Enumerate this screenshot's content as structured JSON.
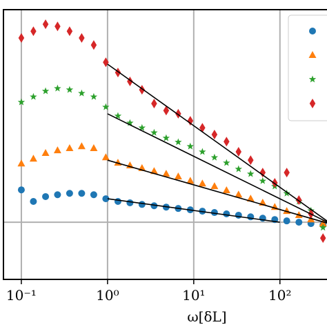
{
  "chart_data": {
    "type": "scatter",
    "x_label": "ω[δL]",
    "xscale": "log",
    "xlim": [
      0.062,
      400
    ],
    "xticks": [
      {
        "value": 0.1,
        "label": "10⁻¹"
      },
      {
        "value": 1,
        "label": "10⁰"
      },
      {
        "value": 10,
        "label": "10¹"
      },
      {
        "value": 100,
        "label": "10²"
      }
    ],
    "ylim": [
      -2.12,
      7.88
    ],
    "yticks": [
      0
    ],
    "grid": true,
    "legend": "upper right",
    "x": [
      0.1,
      0.138,
      0.191,
      0.263,
      0.363,
      0.501,
      0.692,
      0.955,
      1.32,
      1.82,
      2.51,
      3.47,
      4.79,
      6.61,
      9.12,
      12.6,
      17.4,
      24.0,
      33.1,
      45.7,
      63.1,
      87.1,
      120,
      166,
      229,
      316
    ],
    "series": [
      {
        "color": "#1f77b4",
        "marker": "circle",
        "values": [
          1.2,
          0.77,
          0.95,
          1.02,
          1.07,
          1.07,
          1.02,
          0.87,
          0.77,
          0.72,
          0.66,
          0.61,
          0.56,
          0.51,
          0.46,
          0.41,
          0.36,
          0.31,
          0.26,
          0.2,
          0.15,
          0.1,
          0.05,
          0,
          -0.05,
          -0.1
        ]
      },
      {
        "color": "#ff7f0e",
        "marker": "triangle",
        "values": [
          2.17,
          2.35,
          2.56,
          2.66,
          2.74,
          2.81,
          2.74,
          2.4,
          2.2,
          2.1,
          2.0,
          1.89,
          1.79,
          1.69,
          1.53,
          1.43,
          1.33,
          1.18,
          1.02,
          0.87,
          0.72,
          0.56,
          0.41,
          0.26,
          0.1,
          -0.05
        ]
      },
      {
        "color": "#2ca02c",
        "marker": "star",
        "values": [
          4.45,
          4.65,
          4.86,
          4.96,
          4.91,
          4.78,
          4.65,
          4.27,
          3.94,
          3.68,
          3.5,
          3.32,
          3.12,
          2.97,
          2.81,
          2.61,
          2.4,
          2.2,
          1.97,
          1.79,
          1.53,
          1.33,
          1.07,
          0.77,
          0.43,
          -0.2
        ]
      },
      {
        "color": "#d62728",
        "marker": "diamond",
        "values": [
          6.83,
          7.08,
          7.34,
          7.26,
          7.08,
          6.83,
          6.57,
          5.93,
          5.55,
          5.22,
          4.91,
          4.4,
          4.14,
          4.02,
          3.76,
          3.5,
          3.25,
          2.99,
          2.61,
          2.3,
          1.84,
          1.46,
          1.84,
          0.82,
          0.31,
          -0.59
        ]
      }
    ],
    "fit_lines": [
      {
        "color": "#000000",
        "x": [
          1,
          100
        ],
        "values": [
          0.87,
          0
        ]
      },
      {
        "color": "#000000",
        "x": [
          1,
          400
        ],
        "values": [
          2.3,
          -0.08
        ]
      },
      {
        "color": "#000000",
        "x": [
          1,
          400
        ],
        "values": [
          4.02,
          -0.08
        ]
      },
      {
        "color": "#000000",
        "x": [
          1,
          400
        ],
        "values": [
          5.86,
          -0.08
        ]
      }
    ]
  }
}
